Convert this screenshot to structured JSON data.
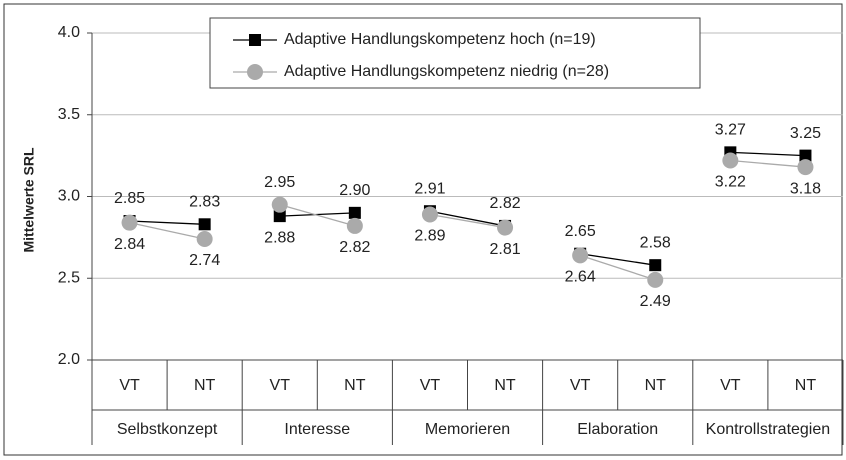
{
  "chart_data": {
    "type": "line",
    "y_label": "Mittelwerte SRL",
    "categories": [
      "VT",
      "NT",
      "VT",
      "NT",
      "VT",
      "NT",
      "VT",
      "NT",
      "VT",
      "NT"
    ],
    "groups": [
      "Selbstkonzept",
      "Interesse",
      "Memorieren",
      "Elaboration",
      "Kontrollstrategien"
    ],
    "series": [
      {
        "name": "Adaptive Handlungskompetenz hoch (n=19)",
        "color": "#000000",
        "marker": "square",
        "values": [
          2.85,
          2.83,
          2.88,
          2.9,
          2.91,
          2.82,
          2.65,
          2.58,
          3.27,
          3.25
        ],
        "value_labels": [
          "2.85",
          "2.83",
          "2.88",
          "2.90",
          "2.91",
          "2.82",
          "2.65",
          "2.58",
          "3.27",
          "3.25"
        ]
      },
      {
        "name": "Adaptive Handlungskompetenz niedrig (n=28)",
        "color": "#aaaaaa",
        "marker": "circle",
        "values": [
          2.84,
          2.74,
          2.95,
          2.82,
          2.89,
          2.81,
          2.64,
          2.49,
          3.22,
          3.18
        ],
        "value_labels": [
          "2.84",
          "2.74",
          "2.95",
          "2.82",
          "2.89",
          "2.81",
          "2.64",
          "2.49",
          "3.22",
          "3.18"
        ]
      }
    ],
    "ylim": [
      2,
      4
    ],
    "yticks": [
      {
        "value": 2,
        "label": "2.0"
      },
      {
        "value": 2.5,
        "label": "2.5"
      },
      {
        "value": 3,
        "label": "3.0"
      },
      {
        "value": 3.5,
        "label": "3.5"
      },
      {
        "value": 4,
        "label": "4.0"
      }
    ],
    "grid": true,
    "legend": "top"
  }
}
